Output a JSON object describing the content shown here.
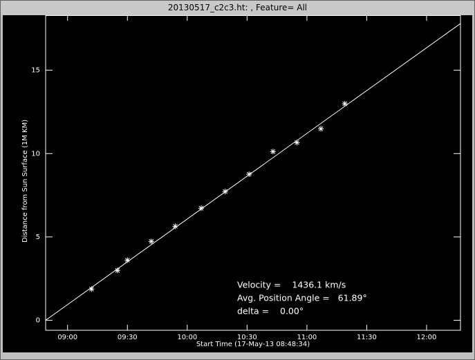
{
  "chart_data": {
    "type": "scatter",
    "title": "20130517_c2c3.ht: , Feature= All",
    "xlabel": "Start Time (17-May-13 08:48:34)",
    "ylabel": "Distance from Sun Surface (1M KM)",
    "x": [
      "09:12",
      "09:25",
      "09:30",
      "09:42",
      "09:54",
      "10:07",
      "10:19",
      "10:31",
      "10:43",
      "10:55",
      "11:07",
      "11:19"
    ],
    "values": [
      1.87,
      2.99,
      3.61,
      4.73,
      5.64,
      6.72,
      7.72,
      8.76,
      10.12,
      10.66,
      11.49,
      12.99
    ],
    "fit": {
      "x": [
        "08:49",
        "12:17"
      ],
      "values": [
        0.0,
        17.8
      ]
    },
    "color": "#ffffff",
    "xlim": [
      "08:49",
      "12:17"
    ],
    "xticks": [
      "09:00",
      "09:30",
      "10:00",
      "10:30",
      "11:00",
      "11:30",
      "12:00"
    ],
    "ylim": [
      -0.6,
      18.3
    ],
    "yticks": [
      0,
      5,
      10,
      15
    ],
    "annotations": [
      "Velocity =    1436.1 km/s",
      "Avg. Position Angle =   61.89°",
      "delta =    0.00°"
    ]
  }
}
